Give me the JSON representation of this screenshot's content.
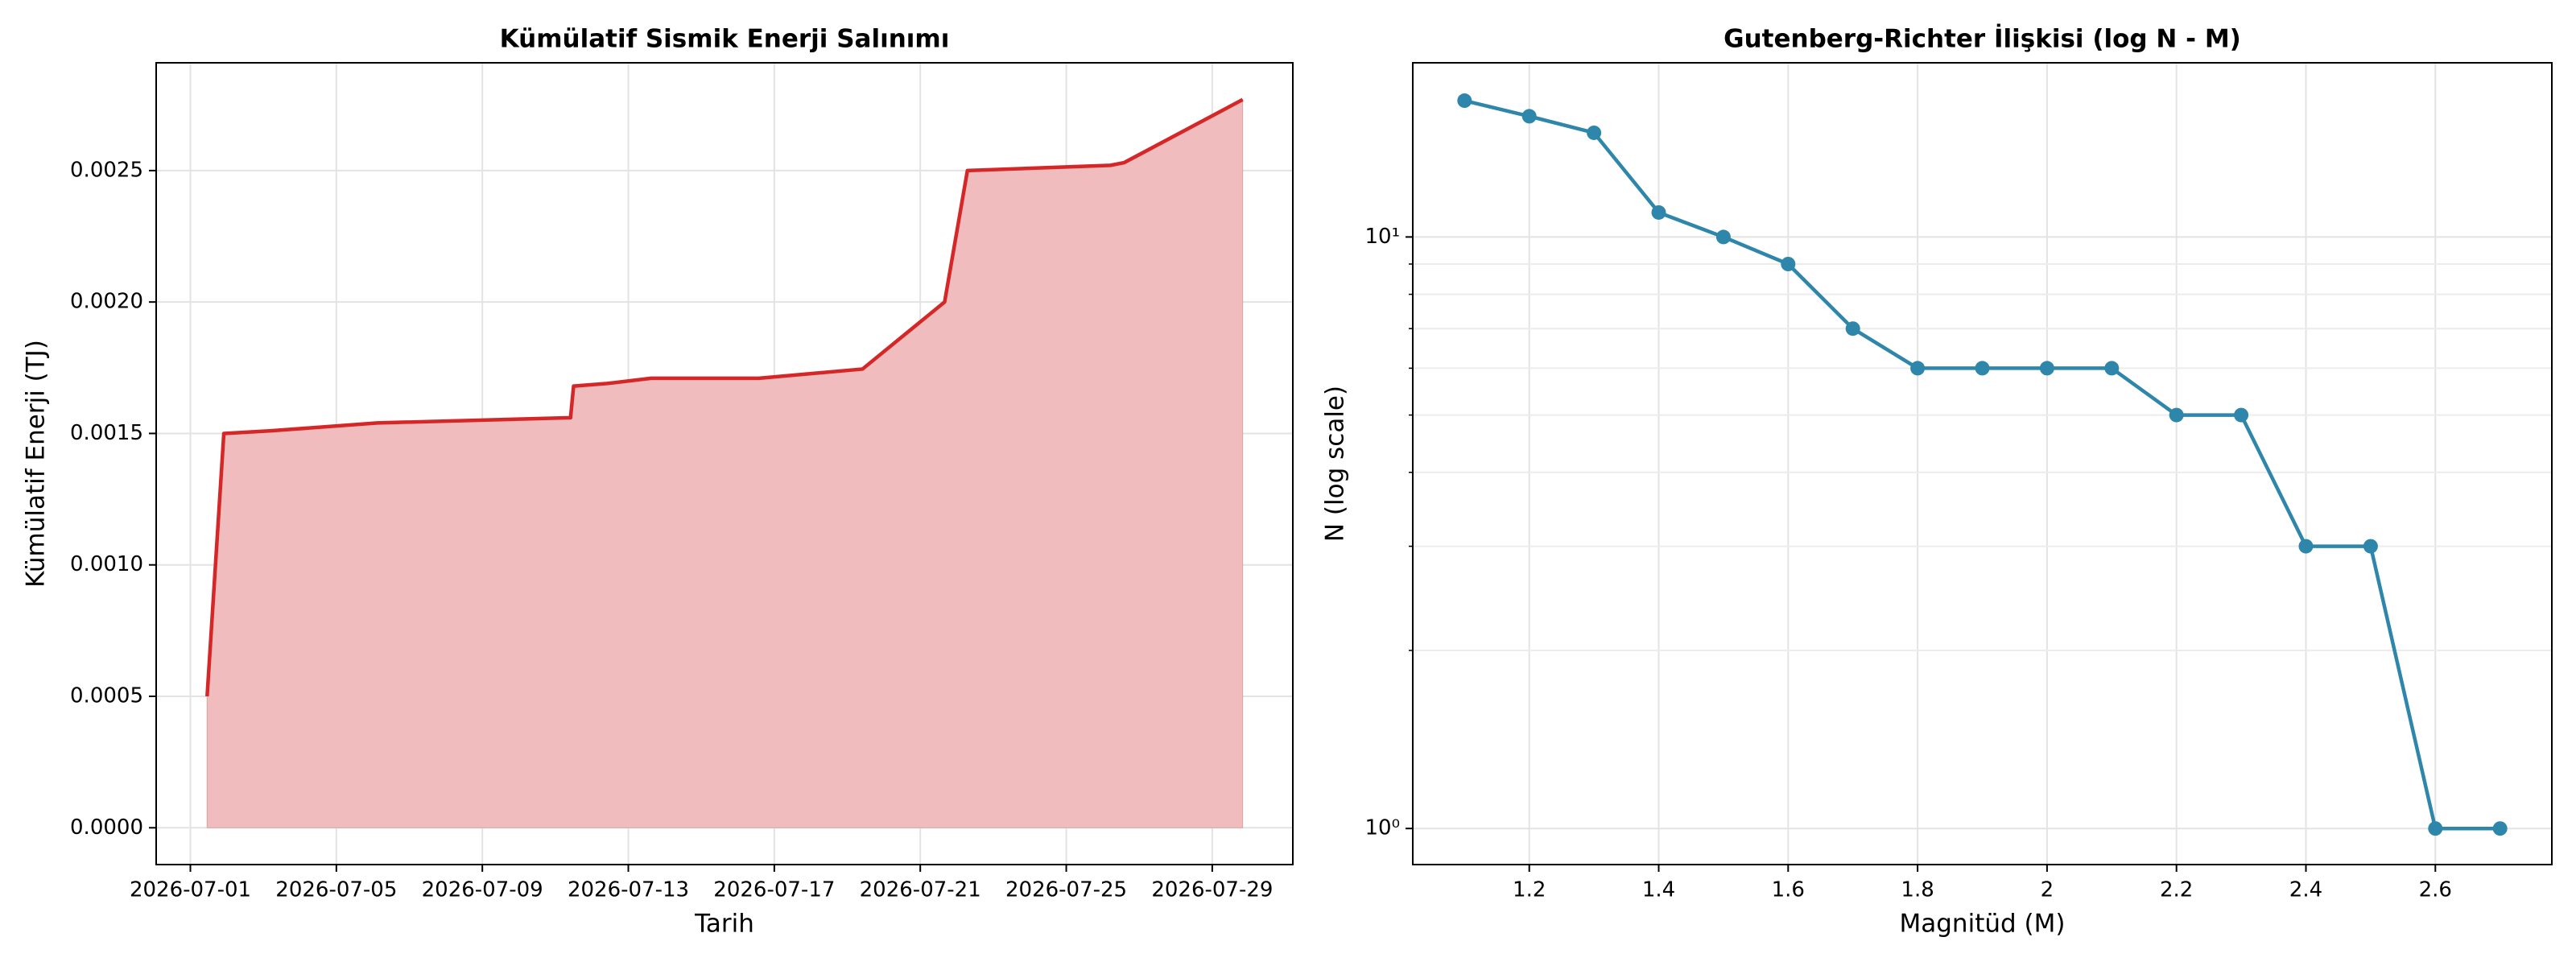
{
  "chart_data": [
    {
      "type": "area",
      "title": "Kümülatif Sismik Enerji Salınımı",
      "xlabel": "Tarih",
      "ylabel": "Kümülatif Enerji (TJ)",
      "x": [
        "2026-07-01T11:00",
        "2026-07-01T22:00",
        "2026-07-03T05:00",
        "2026-07-06T03:00",
        "2026-07-11T10:00",
        "2026-07-11T12:00",
        "2026-07-12T10:00",
        "2026-07-13T15:00",
        "2026-07-16T14:00",
        "2026-07-19T10:00",
        "2026-07-21T16:00",
        "2026-07-22T07:00",
        "2026-07-26T05:00",
        "2026-07-26T14:00",
        "2026-07-29T20:00"
      ],
      "values": [
        0.0005,
        0.0015,
        0.00151,
        0.00154,
        0.00156,
        0.00168,
        0.00169,
        0.00171,
        0.00171,
        0.001745,
        0.002,
        0.0025,
        0.00252,
        0.00253,
        0.00277
      ],
      "color": "#d62728",
      "fill_color": "#f0bcbd",
      "xlim": [
        "2026-06-30T01:30",
        "2026-07-31T05:00"
      ],
      "xticks": [
        "2026-07-01",
        "2026-07-05",
        "2026-07-09",
        "2026-07-13",
        "2026-07-17",
        "2026-07-21",
        "2026-07-25",
        "2026-07-29"
      ],
      "ylim": [
        -0.00014,
        0.00291
      ],
      "yticks": [
        {
          "value": 0,
          "label": "0.0000"
        },
        0.0005,
        {
          "value": 0.001,
          "label": "0.0010"
        },
        0.0015,
        {
          "value": 0.002,
          "label": "0.0020"
        },
        0.0025
      ],
      "grid": true
    },
    {
      "type": "line",
      "title": "Gutenberg-Richter İlişkisi (log N - M)",
      "xlabel": "Magnitüd (M)",
      "ylabel": "N (log scale)",
      "x": [
        1.1,
        1.2,
        1.3,
        1.4,
        1.5,
        1.6,
        1.7,
        1.8,
        1.9,
        2.0,
        2.1,
        2.2,
        2.3,
        2.4,
        2.5,
        2.6,
        2.7
      ],
      "values": [
        17,
        16,
        15,
        11,
        10,
        9,
        7,
        6,
        6,
        6,
        6,
        5,
        5,
        3,
        3,
        1,
        1
      ],
      "color": "#2e86ab",
      "log_y": true,
      "markers": true,
      "xlim": [
        1.02,
        2.78
      ],
      "xticks": [
        1.2,
        1.4,
        1.6,
        1.8,
        2.0,
        2.2,
        2.4,
        2.6
      ],
      "ylim": [
        0.869,
        19.7
      ],
      "yticks": [
        {
          "value": 1,
          "label": "10⁰"
        },
        {
          "value": 10,
          "label": "10¹"
        }
      ],
      "yminorticks": [
        2,
        3,
        4,
        5,
        6,
        7,
        8,
        9
      ],
      "grid": true
    }
  ]
}
